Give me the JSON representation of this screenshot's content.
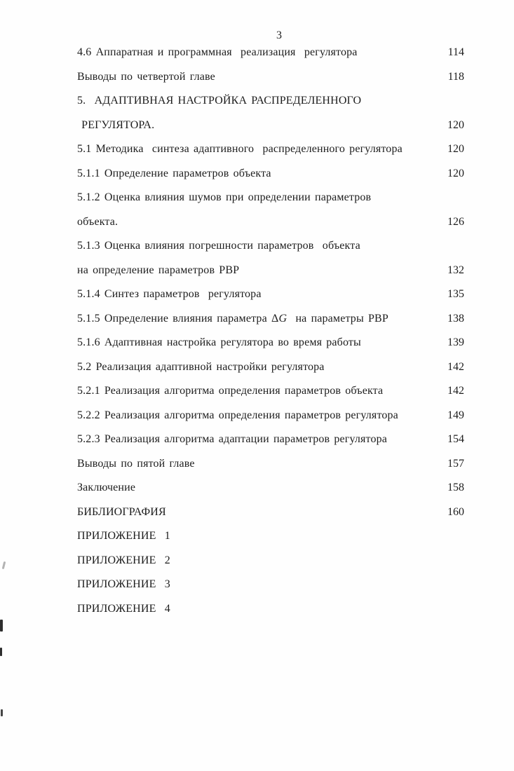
{
  "page": {
    "number": "3",
    "colors": {
      "text": "#1d1d1d",
      "paper": "#fefefe"
    }
  },
  "toc": {
    "entries": [
      {
        "lines": [
          "4.6 Аппаратная и программная  реализация  регулятора"
        ],
        "page": "114"
      },
      {
        "lines": [
          "Выводы по четвертой главе"
        ],
        "page": "118"
      },
      {
        "lines": [
          "5.  АДАПТИВНАЯ НАСТРОЙКА РАСПРЕДЕЛЕННОГО",
          " РЕГУЛЯТОРА."
        ],
        "page": "120"
      },
      {
        "lines": [
          "5.1 Методика  синтеза адаптивного  распределенного регулятора"
        ],
        "page": "120"
      },
      {
        "lines": [
          "5.1.1 Определение параметров объекта"
        ],
        "page": "120"
      },
      {
        "lines": [
          "5.1.2 Оценка влияния шумов при определении параметров",
          "объекта."
        ],
        "page": "126"
      },
      {
        "lines": [
          "5.1.3 Оценка влияния погрешности параметров  объекта",
          "на определение параметров РВР"
        ],
        "page": "132"
      },
      {
        "lines": [
          "5.1.4 Синтез параметров  регулятора"
        ],
        "page": "135"
      },
      {
        "lines": [
          "5.1.5 Определение влияния параметра ΔG  на параметры РВР"
        ],
        "page": "138"
      },
      {
        "lines": [
          "5.1.6 Адаптивная настройка регулятора во время работы"
        ],
        "page": "139"
      },
      {
        "lines": [
          "5.2 Реализация адаптивной настройки регулятора"
        ],
        "page": "142"
      },
      {
        "lines": [
          "5.2.1 Реализация алгоритма определения параметров объекта"
        ],
        "page": "142"
      },
      {
        "lines": [
          "5.2.2 Реализация алгоритма определения параметров регулятора"
        ],
        "page": "149"
      },
      {
        "lines": [
          "5.2.3 Реализация алгоритма адаптации параметров регулятора"
        ],
        "page": "154"
      },
      {
        "lines": [
          "Выводы по пятой главе"
        ],
        "page": "157"
      },
      {
        "lines": [
          "Заключение"
        ],
        "page": "158"
      },
      {
        "lines": [
          "БИБЛИОГРАФИЯ"
        ],
        "page": "160"
      },
      {
        "lines": [
          "ПРИЛОЖЕНИЕ  1"
        ],
        "page": ""
      },
      {
        "lines": [
          "ПРИЛОЖЕНИЕ  2"
        ],
        "page": ""
      },
      {
        "lines": [
          "ПРИЛОЖЕНИЕ  3"
        ],
        "page": ""
      },
      {
        "lines": [
          "ПРИЛОЖЕНИЕ  4"
        ],
        "page": ""
      }
    ]
  }
}
